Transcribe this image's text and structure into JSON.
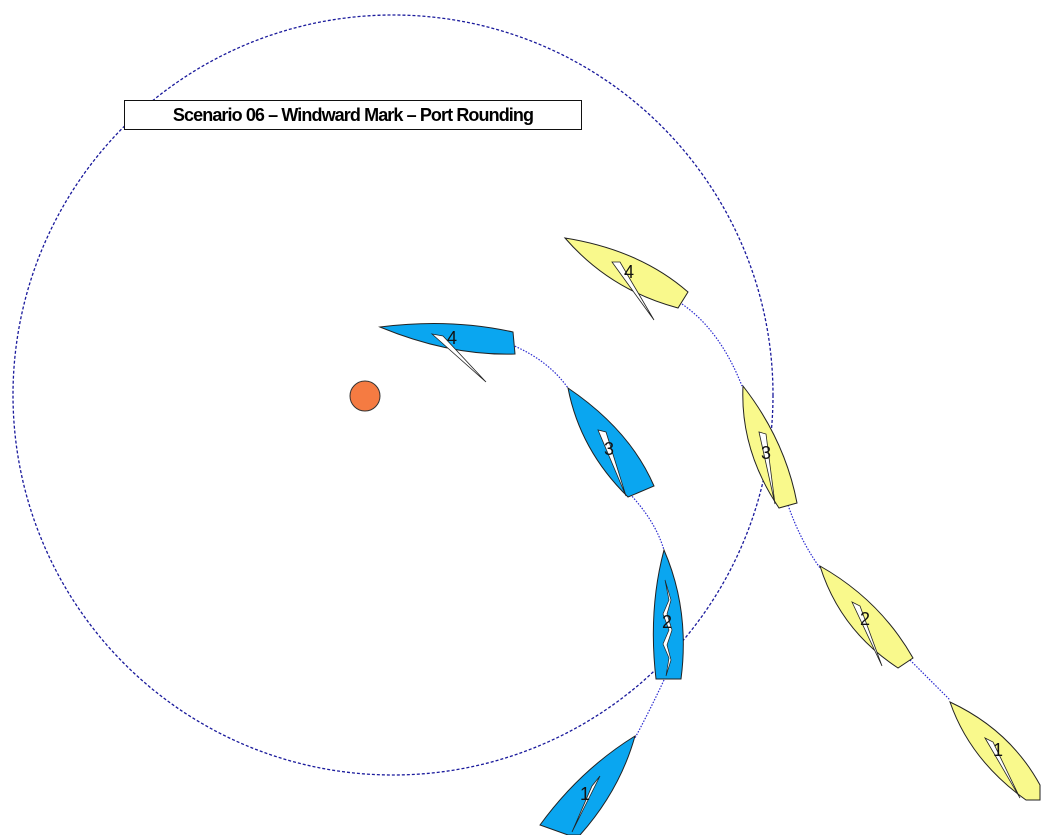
{
  "title": "Scenario 06 – Windward Mark – Port Rounding",
  "colors": {
    "blue_boat": "#0aa6f0",
    "yellow_boat": "#f9f98c",
    "mark": "#f57b42",
    "zone_circle": "#1a1a9c",
    "track": "#2a2ad0"
  },
  "boats": {
    "blue": {
      "color_name": "blue",
      "positions": [
        {
          "label": "1"
        },
        {
          "label": "2"
        },
        {
          "label": "3"
        },
        {
          "label": "4"
        }
      ]
    },
    "yellow": {
      "color_name": "yellow",
      "positions": [
        {
          "label": "1"
        },
        {
          "label": "2"
        },
        {
          "label": "3"
        },
        {
          "label": "4"
        }
      ]
    }
  },
  "mark": {
    "name": "windward-mark",
    "shape": "circle"
  },
  "zone": {
    "shape": "dashed-circle"
  }
}
